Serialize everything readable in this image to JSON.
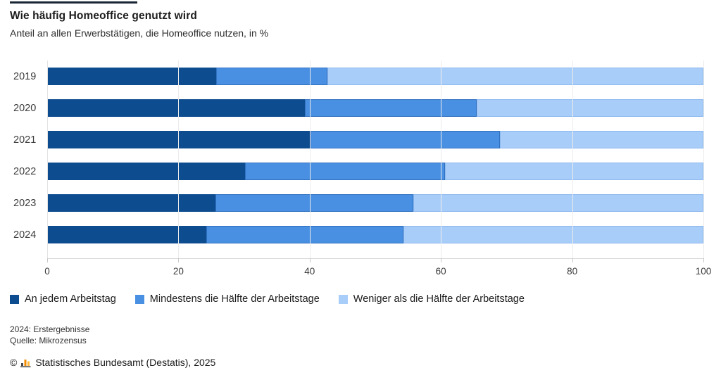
{
  "header": {
    "title": "Wie häufig Homeoffice genutzt wird",
    "subtitle": "Anteil an allen Erwerbstätigen, die Homeoffice nutzen, in %"
  },
  "chart_data": {
    "type": "bar",
    "orientation": "horizontal",
    "stacked": true,
    "title": "Wie häufig Homeoffice genutzt wird",
    "subtitle": "Anteil an allen Erwerbstätigen, die Homeoffice nutzen, in %",
    "unit": "%",
    "categories": [
      "2019",
      "2020",
      "2021",
      "2022",
      "2023",
      "2024"
    ],
    "series": [
      {
        "name": "An jedem Arbeitstag",
        "color": "#0d4c8f",
        "values": [
          25.8,
          39.3,
          40.1,
          30.2,
          25.6,
          24.2
        ]
      },
      {
        "name": "Mindestens die Hälfte der Arbeitstage",
        "color": "#4a90e2",
        "values": [
          16.9,
          26.1,
          28.9,
          30.4,
          30.2,
          30.1
        ]
      },
      {
        "name": "Weniger als die Hälfte der Arbeitstage",
        "color": "#a9cdf9",
        "values": [
          57.3,
          34.6,
          31.0,
          39.4,
          44.2,
          45.7
        ]
      }
    ],
    "xlim": [
      0,
      100
    ],
    "xticks": [
      0,
      20,
      40,
      60,
      80,
      100
    ],
    "grid": true,
    "legend_position": "bottom"
  },
  "footnotes": {
    "line1": "2024: Erstergebnisse",
    "line2": "Quelle: Mikrozensus"
  },
  "copyright": {
    "symbol": "©",
    "icon": "destatis-bars-icon",
    "text": "Statistisches Bundesamt (Destatis), 2025"
  },
  "colors": {
    "accent_dark_blue": "#0d4c8f",
    "accent_medium_blue": "#4a90e2",
    "accent_light_blue": "#a9cdf9",
    "gridline": "#ececec",
    "axis_line": "#d8d8d8",
    "icon_orange": "#f08a00",
    "icon_amber": "#ffb839",
    "icon_dark": "#4a4a4a",
    "top_rule": "#1a2633"
  }
}
